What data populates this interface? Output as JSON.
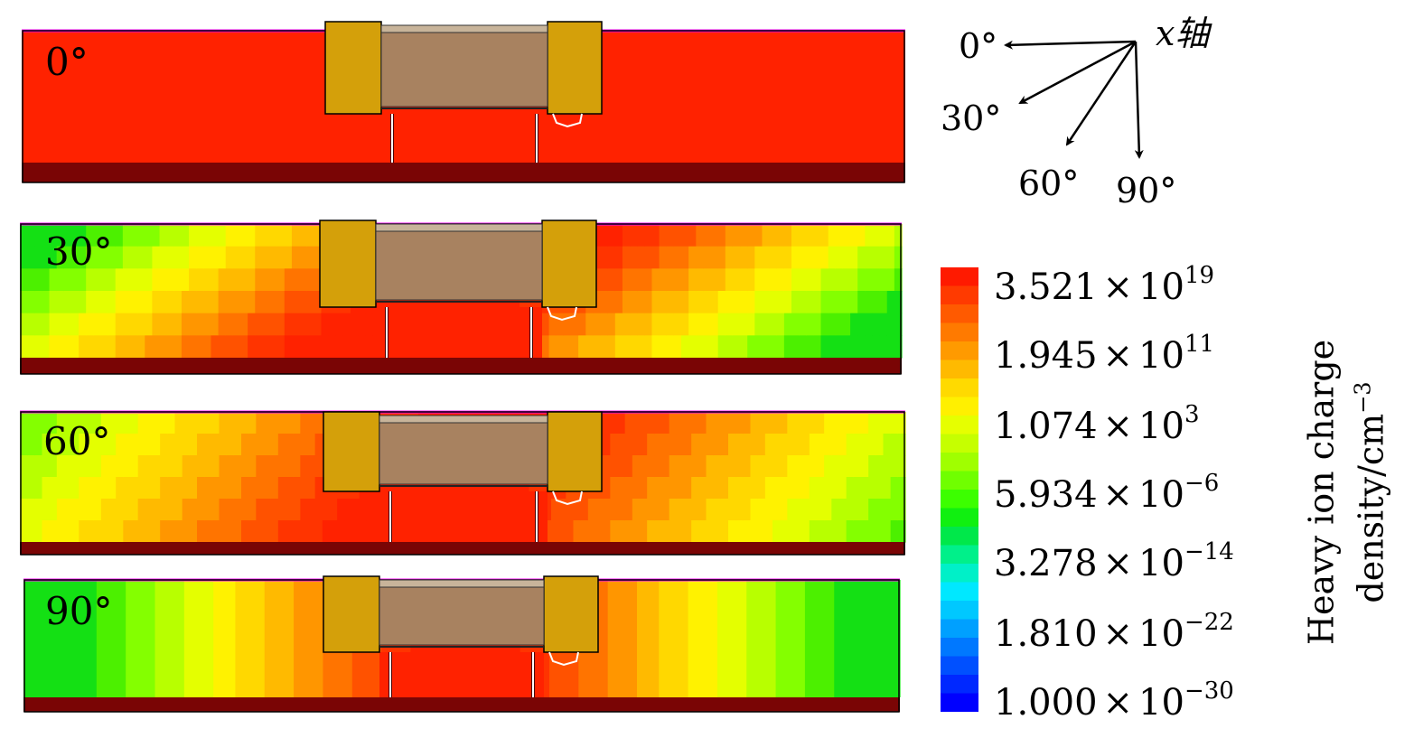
{
  "panels": [
    {
      "label": "0°"
    },
    {
      "label": "30°"
    },
    {
      "label": "60°"
    },
    {
      "label": "90°"
    }
  ],
  "axis_diagram": {
    "axis_label": "x轴",
    "angles": [
      "0°",
      "30°",
      "60°",
      "90°"
    ]
  },
  "colorbar": {
    "title_line1": "Heavy ion charge",
    "title_line2": "density/cm",
    "title_exponent": "−3",
    "ticks": [
      {
        "mantissa": "3.521",
        "exponent": "19"
      },
      {
        "mantissa": "1.945",
        "exponent": "11"
      },
      {
        "mantissa": "1.074",
        "exponent": "3"
      },
      {
        "mantissa": "5.934",
        "exponent": "−6"
      },
      {
        "mantissa": "3.278",
        "exponent": "−14"
      },
      {
        "mantissa": "1.810",
        "exponent": "−22"
      },
      {
        "mantissa": "1.000",
        "exponent": "−30"
      }
    ],
    "colors": [
      "#ff1a00",
      "#ff3a00",
      "#ff5a00",
      "#ff7a00",
      "#ff9a00",
      "#ffba00",
      "#ffda00",
      "#fff000",
      "#e6ff00",
      "#c6ff00",
      "#a0ff00",
      "#70ff00",
      "#3cff00",
      "#10f010",
      "#00e84a",
      "#00f08a",
      "#00f0c8",
      "#00e8ff",
      "#00c8ff",
      "#00a0ff",
      "#0078ff",
      "#0050ff",
      "#0028ff",
      "#0000ff"
    ]
  },
  "device_colors": {
    "red": "#ff2200",
    "substrate": "#7a0505",
    "contact": "#d4a00a",
    "gate": "#a88260",
    "oxide": "#c8b49a",
    "top_line": "#ff00ff"
  }
}
